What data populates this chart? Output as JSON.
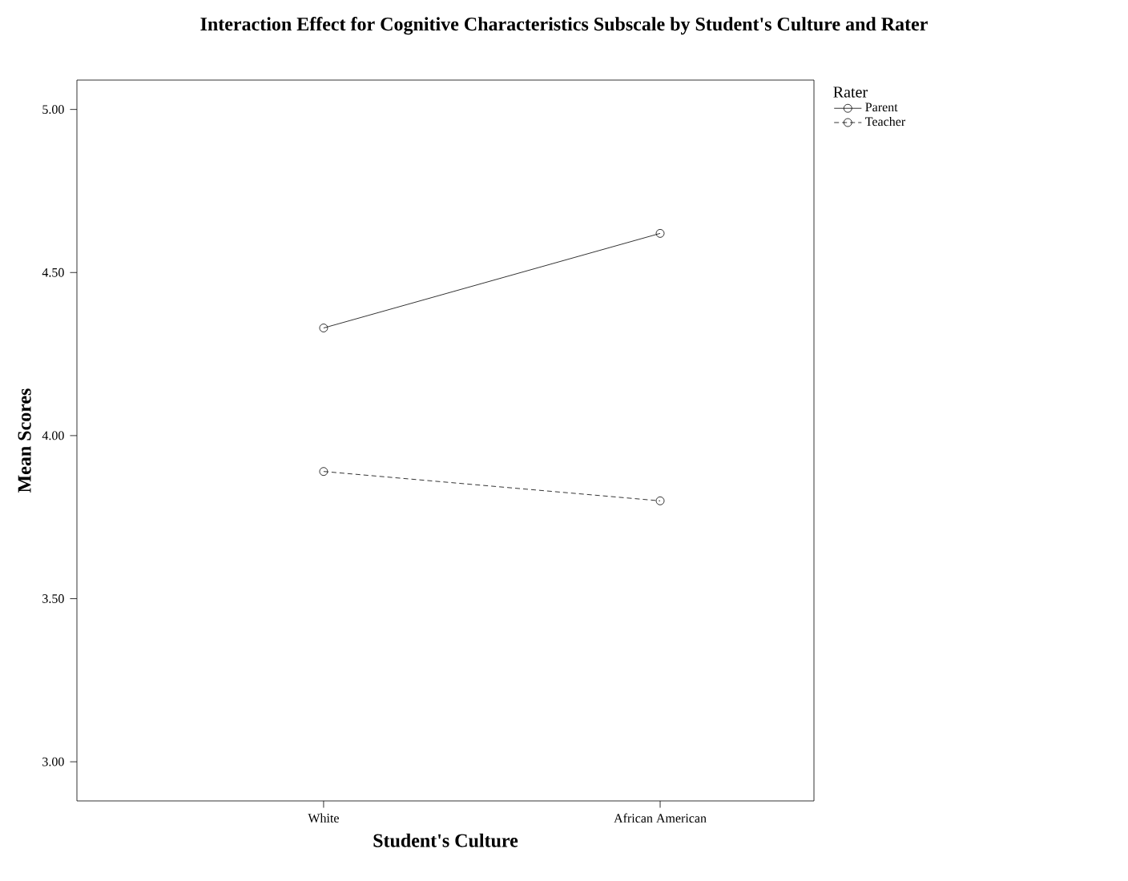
{
  "chart_data": {
    "type": "line",
    "title": "Interaction Effect for Cognitive Characteristics Subscale by Student's Culture and Rater",
    "xlabel": "Student's Culture",
    "ylabel": "Mean Scores",
    "legend_title": "Rater",
    "categories": [
      "White",
      "African American"
    ],
    "series": [
      {
        "name": "Parent",
        "color": "#000000",
        "line_style": "solid",
        "values": [
          4.33,
          4.62
        ]
      },
      {
        "name": "Teacher",
        "color": "#000000",
        "line_style": "dashed",
        "values": [
          3.89,
          3.8
        ]
      }
    ],
    "ylim": [
      2.88,
      5.09
    ],
    "yticks": [
      {
        "value": 3,
        "label": "3.00"
      },
      {
        "value": 3.5,
        "label": "3.50"
      },
      {
        "value": 4,
        "label": "4.00"
      },
      {
        "value": 4.5,
        "label": "4.50"
      },
      {
        "value": 5,
        "label": "5.00"
      }
    ],
    "marker": "circle",
    "legend": "top right",
    "grid": false
  }
}
